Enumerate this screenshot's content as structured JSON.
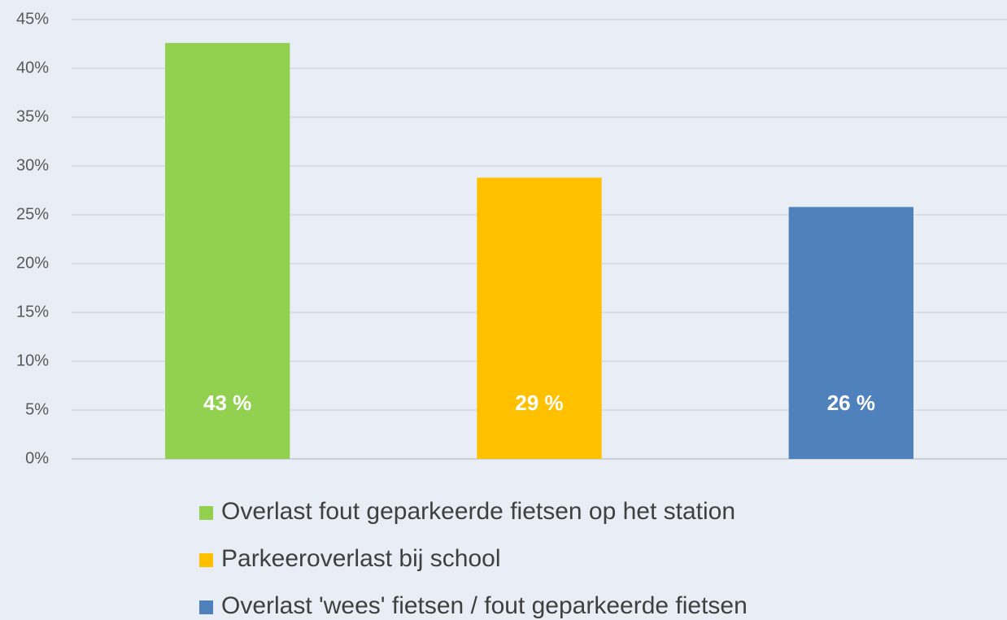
{
  "chart_data": {
    "type": "bar",
    "categories": [
      null
    ],
    "series": [
      {
        "name": "Overlast fout geparkeerde fietsen op het station",
        "color": "#92d050",
        "values": [
          42.6
        ],
        "value_labels": [
          "43 %"
        ]
      },
      {
        "name": "Parkeeroverlast bij school",
        "color": "#ffc000",
        "values": [
          28.8
        ],
        "value_labels": [
          "29 %"
        ]
      },
      {
        "name": "Overlast 'wees' fietsen / fout geparkeerde fietsen",
        "color": "#4f81bd",
        "values": [
          25.8
        ],
        "value_labels": [
          "26 %"
        ]
      }
    ],
    "ylim": [
      0,
      45
    ],
    "yticks": [
      {
        "value": 0,
        "label": "0%"
      },
      {
        "value": 5,
        "label": "5%"
      },
      {
        "value": 10,
        "label": "10%"
      },
      {
        "value": 15,
        "label": "15%"
      },
      {
        "value": 20,
        "label": "20%"
      },
      {
        "value": 25,
        "label": "25%"
      },
      {
        "value": 30,
        "label": "30%"
      },
      {
        "value": 35,
        "label": "35%"
      },
      {
        "value": 40,
        "label": "40%"
      },
      {
        "value": 45,
        "label": "45%"
      }
    ],
    "grid": true,
    "legend": "bottom"
  }
}
